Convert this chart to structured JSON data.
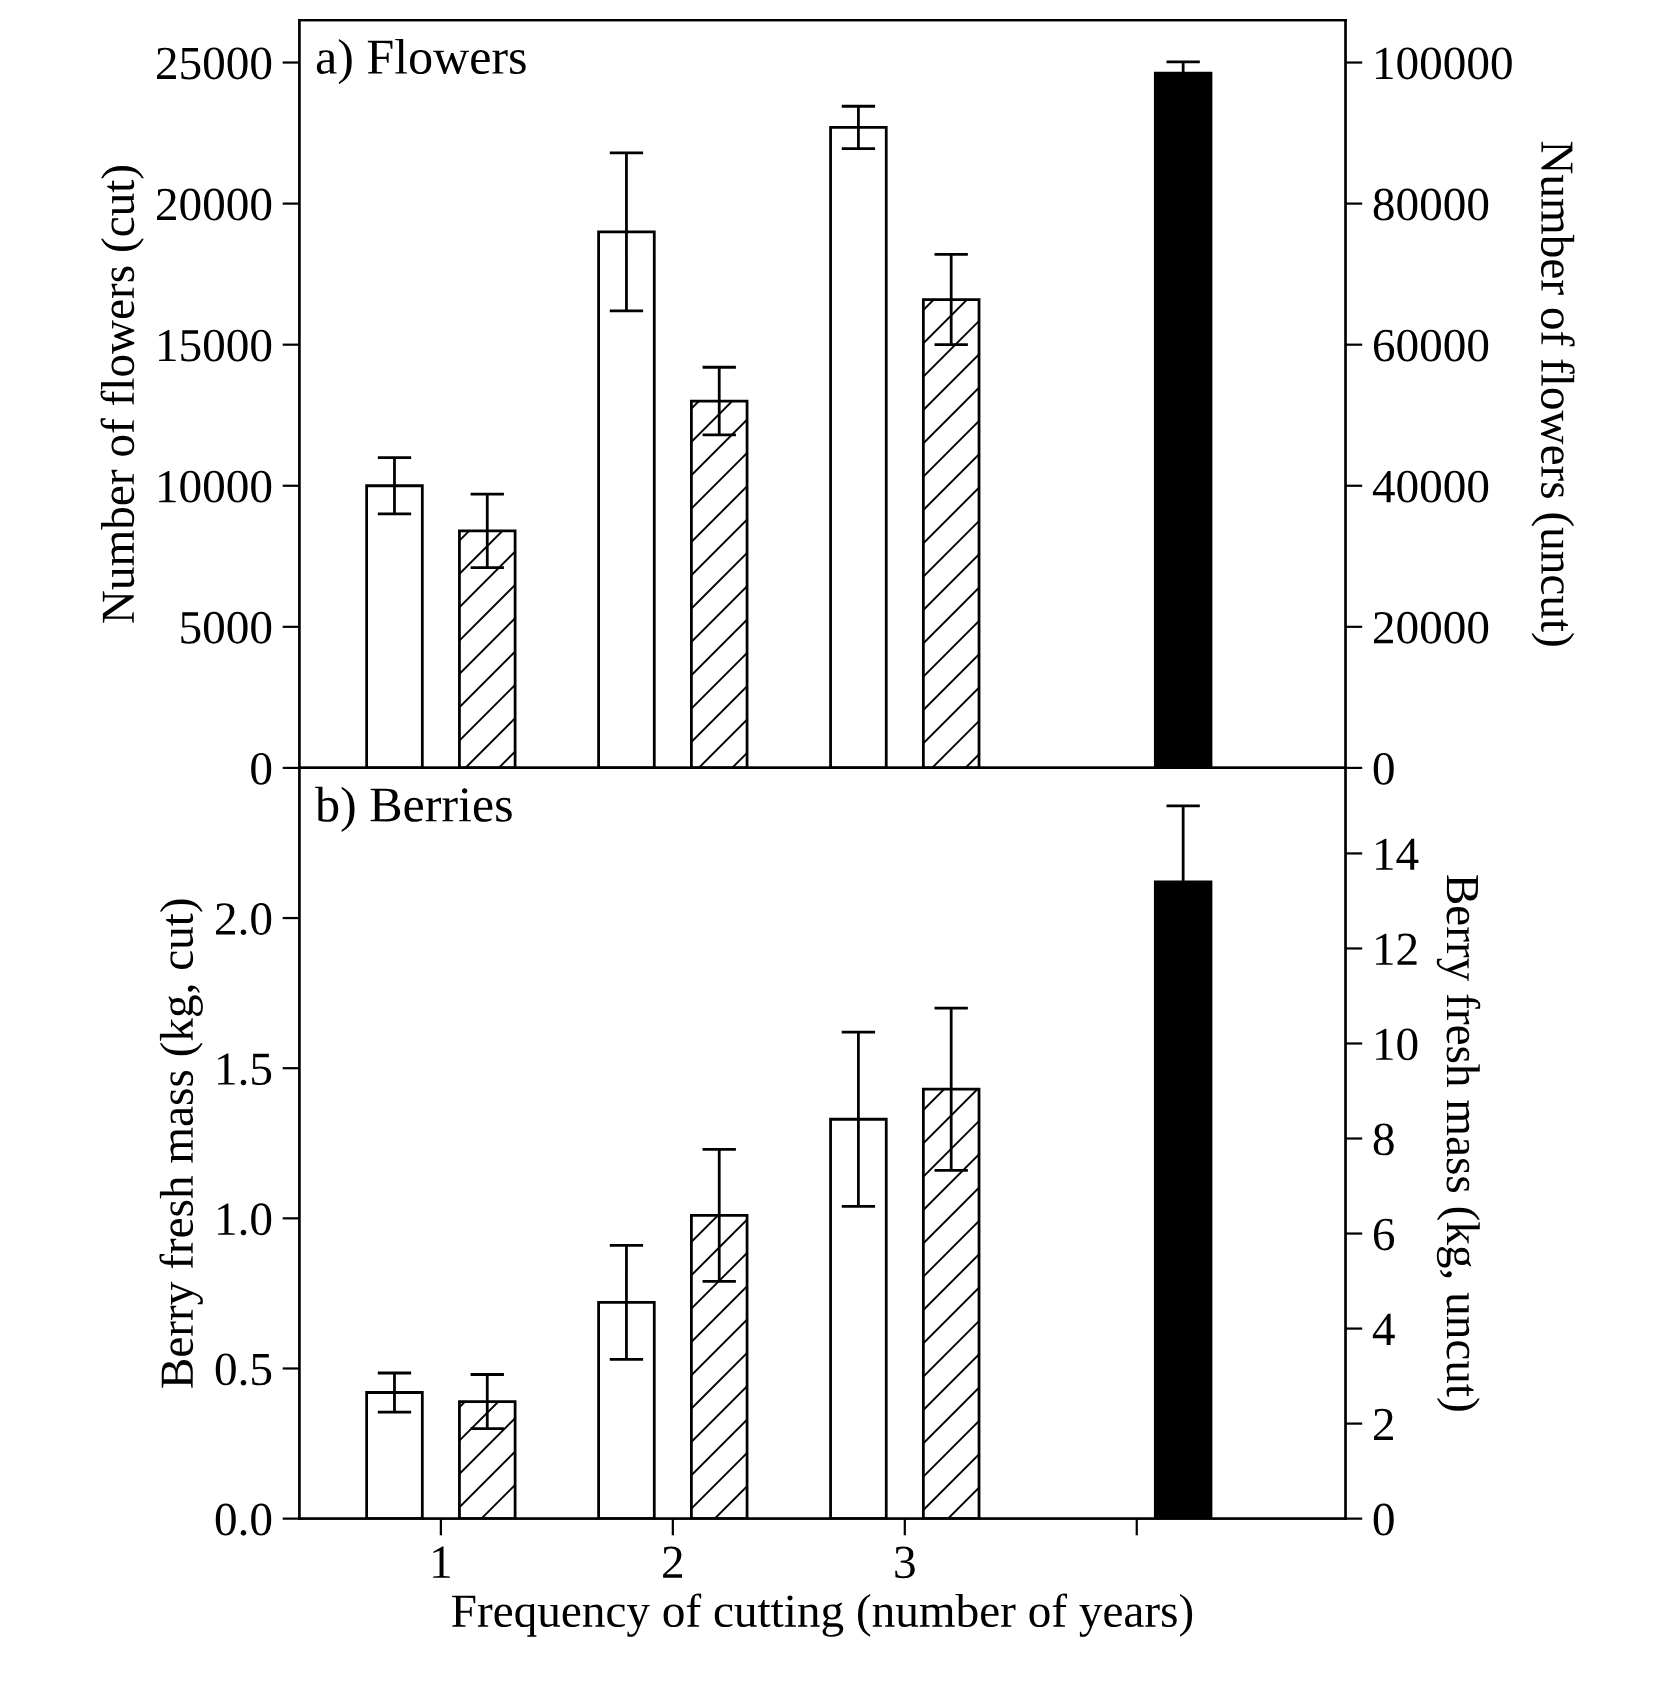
{
  "chart_data": [
    {
      "type": "bar",
      "title": "a) Flowers",
      "ylabel": "Number of flowers (cut)",
      "y2label": "Number of flowers (uncut)",
      "categories": [
        "1",
        "2",
        "3",
        null
      ],
      "tick_labels": "y",
      "series": [
        {
          "color": "#ffffff",
          "values": [
            10000,
            19000,
            22700,
            null
          ],
          "errors": [
            1000,
            2800,
            750,
            null
          ]
        },
        {
          "color": "#ffffff",
          "values": [
            8400,
            13000,
            16600,
            null
          ],
          "errors": [
            1300,
            1200,
            1600,
            null
          ]
        },
        {
          "color": "#000000",
          "axis": "y2",
          "values": [
            null,
            null,
            null,
            98500
          ],
          "errors": [
            null,
            null,
            null,
            1600
          ]
        }
      ],
      "ylim": [
        0,
        26500
      ],
      "yticks": [
        0,
        5000,
        10000,
        15000,
        20000,
        25000
      ],
      "y2lim": [
        0,
        106000
      ],
      "y2ticks": [
        0,
        20000,
        40000,
        60000,
        80000,
        100000
      ],
      "grid": false
    },
    {
      "type": "bar",
      "title": "b) Berries",
      "xlabel": "Frequency of cutting (number of years)",
      "ylabel": "Berry fresh mass (kg, cut)",
      "y2label": "Berry fresh mass (kg, uncut)",
      "categories": [
        "1",
        "2",
        "3",
        null
      ],
      "series": [
        {
          "color": "#ffffff",
          "values": [
            0.42,
            0.72,
            1.33,
            null
          ],
          "errors": [
            0.065,
            0.19,
            0.29,
            null
          ]
        },
        {
          "color": "#ffffff",
          "values": [
            0.39,
            1.01,
            1.43,
            null
          ],
          "errors": [
            0.09,
            0.22,
            0.27,
            null
          ]
        },
        {
          "color": "#000000",
          "axis": "y2",
          "values": [
            null,
            null,
            null,
            13.4
          ],
          "errors": [
            null,
            null,
            null,
            1.6
          ]
        }
      ],
      "ylim": [
        0,
        2.5
      ],
      "yticks": [
        {
          "value": 0,
          "label": "0.0"
        },
        {
          "value": 0.5,
          "label": "0.5"
        },
        {
          "value": 1,
          "label": "1.0"
        },
        {
          "value": 1.5,
          "label": "1.5"
        },
        {
          "value": 2,
          "label": "2.0"
        }
      ],
      "y2lim": [
        0,
        15.8
      ],
      "y2ticks": [
        0,
        2,
        4,
        6,
        8,
        10,
        12,
        14
      ],
      "grid": false
    }
  ]
}
